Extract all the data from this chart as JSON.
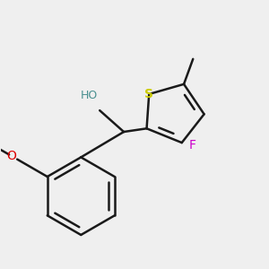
{
  "background_color": "#efefef",
  "bond_color": "#1a1a1a",
  "sulfur_color": "#cccc00",
  "fluorine_color": "#cc00cc",
  "oxygen_color": "#dd0000",
  "oxygen_OH_color": "#4a9090",
  "bond_width": 1.8,
  "methoxy_label": "O",
  "OH_label": "HO",
  "S_label": "S",
  "F_label": "F",
  "methyl_label": "",
  "figsize": [
    3.0,
    3.0
  ],
  "dpi": 100,
  "xlim": [
    0.0,
    1.0
  ],
  "ylim": [
    0.05,
    1.05
  ]
}
